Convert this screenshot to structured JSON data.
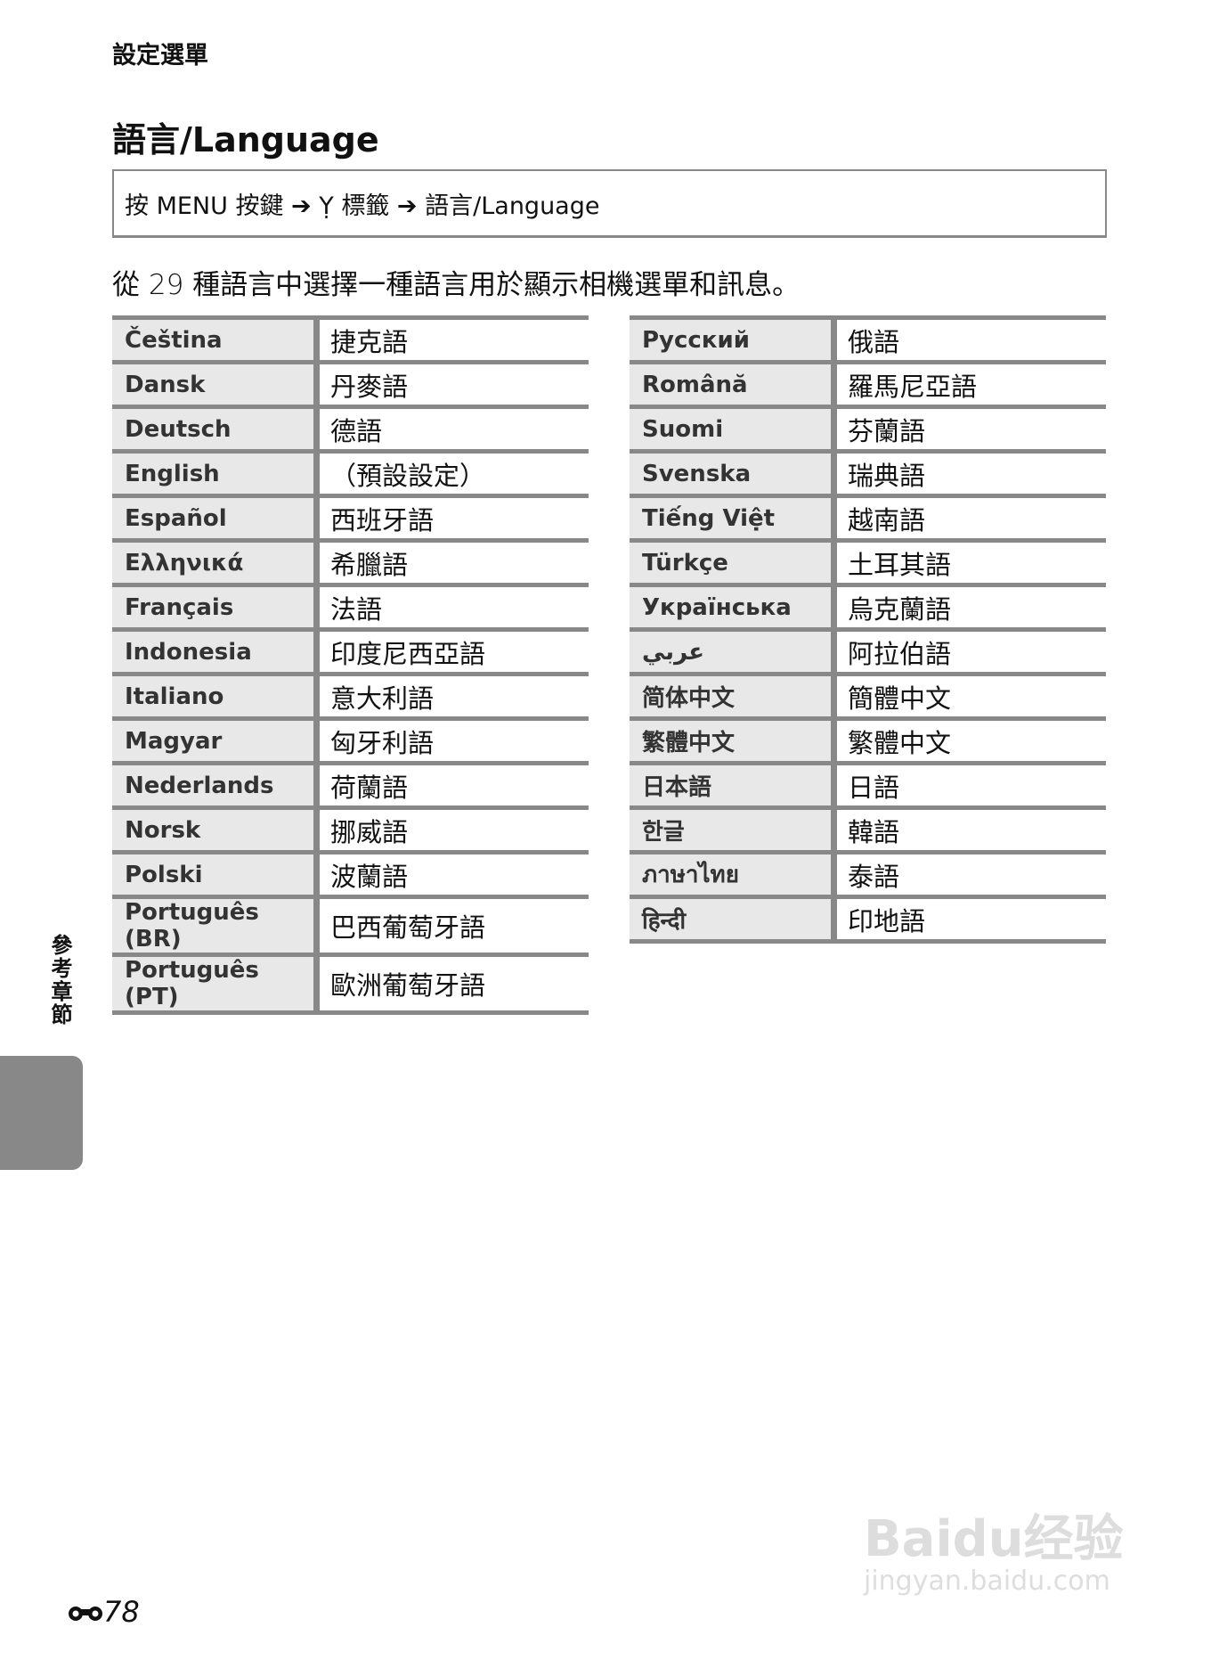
{
  "section_header": "設定選單",
  "title": "語言/Language",
  "nav_path": "按 MENU 按鍵 ➔ Ỵ 標籤 ➔ 語言/Language",
  "intro": "從 29 種語言中選擇一種語言用於顯示相機選單和訊息。",
  "left_table": [
    [
      "Čeština",
      "捷克語"
    ],
    [
      "Dansk",
      "丹麥語"
    ],
    [
      "Deutsch",
      "德語"
    ],
    [
      "English",
      "（預設設定）"
    ],
    [
      "Español",
      "西班牙語"
    ],
    [
      "Ελληνικά",
      "希臘語"
    ],
    [
      "Français",
      "法語"
    ],
    [
      "Indonesia",
      "印度尼西亞語"
    ],
    [
      "Italiano",
      "意大利語"
    ],
    [
      "Magyar",
      "匈牙利語"
    ],
    [
      "Nederlands",
      "荷蘭語"
    ],
    [
      "Norsk",
      "挪威語"
    ],
    [
      "Polski",
      "波蘭語"
    ],
    [
      "Português (BR)",
      "巴西葡萄牙語"
    ],
    [
      "Português (PT)",
      "歐洲葡萄牙語"
    ]
  ],
  "right_table": [
    [
      "Русский",
      "俄語"
    ],
    [
      "Română",
      "羅馬尼亞語"
    ],
    [
      "Suomi",
      "芬蘭語"
    ],
    [
      "Svenska",
      "瑞典語"
    ],
    [
      "Tiếng Việt",
      "越南語"
    ],
    [
      "Türkçe",
      "土耳其語"
    ],
    [
      "Українська",
      "烏克蘭語"
    ],
    [
      "عربي",
      "阿拉伯語"
    ],
    [
      "简体中文",
      "簡體中文"
    ],
    [
      "繁體中文",
      "繁體中文"
    ],
    [
      "日本語",
      "日語"
    ],
    [
      "한글",
      "韓語"
    ],
    [
      "ภาษาไทย",
      "泰語"
    ],
    [
      "हिन्दी",
      "印地語"
    ]
  ],
  "side_tab": "參考章節",
  "page_number": "78",
  "page_icon": "binoculars-icon",
  "watermark": {
    "brand": "Bai du 经验",
    "url": "jingyan.baidu.com"
  }
}
